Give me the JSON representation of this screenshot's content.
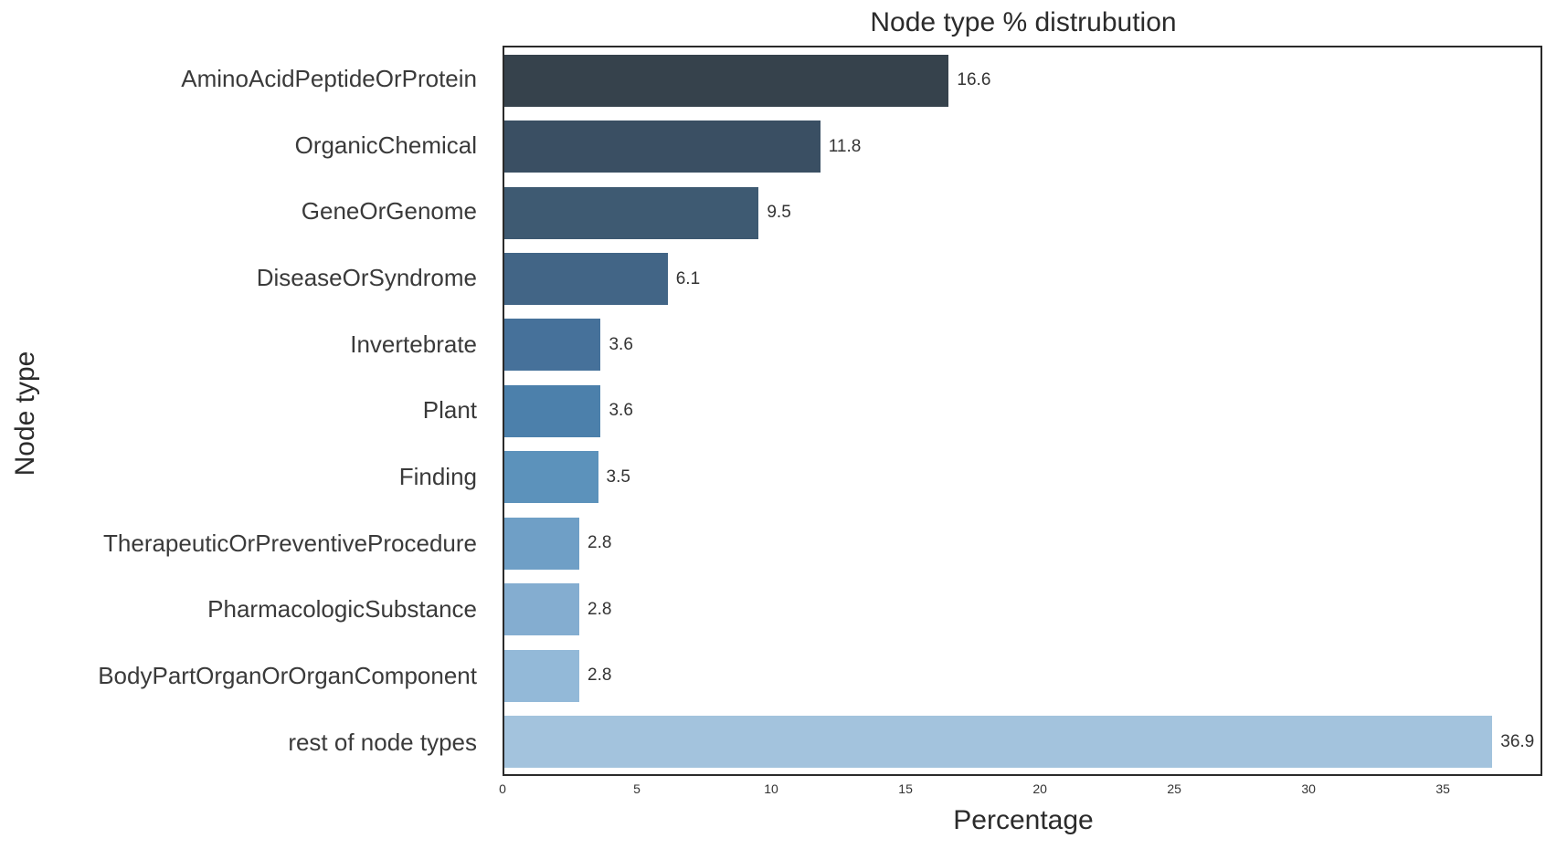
{
  "chart_data": {
    "type": "bar",
    "orientation": "horizontal",
    "title": "Node type % distrubution",
    "xlabel": "Percentage",
    "ylabel": "Node type",
    "categories": [
      "AminoAcidPeptideOrProtein",
      "OrganicChemical",
      "GeneOrGenome",
      "DiseaseOrSyndrome",
      "Invertebrate",
      "Plant",
      "Finding",
      "TherapeuticOrPreventiveProcedure",
      "PharmacologicSubstance",
      "BodyPartOrganOrOrganComponent",
      "rest of node types"
    ],
    "values": [
      16.6,
      11.8,
      9.5,
      6.1,
      3.6,
      3.6,
      3.5,
      2.8,
      2.8,
      2.8,
      36.9
    ],
    "value_labels": [
      "16.6",
      "11.8",
      "9.5",
      "6.1",
      "3.6",
      "3.6",
      "3.5",
      "2.8",
      "2.8",
      "2.8",
      "36.9"
    ],
    "bar_colors": [
      "#36424c",
      "#3a4f63",
      "#3e5a72",
      "#426586",
      "#46719a",
      "#4c80ab",
      "#5c92bb",
      "#6f9fc6",
      "#84add0",
      "#93b9d8",
      "#a3c3dd"
    ],
    "xlim": [
      0,
      38.7
    ],
    "xticks": [
      0,
      5,
      10,
      15,
      20,
      25,
      30,
      35
    ],
    "grid": false,
    "legend": null,
    "background_color": "#ffffff",
    "frame_color": "#2a2a2a"
  }
}
